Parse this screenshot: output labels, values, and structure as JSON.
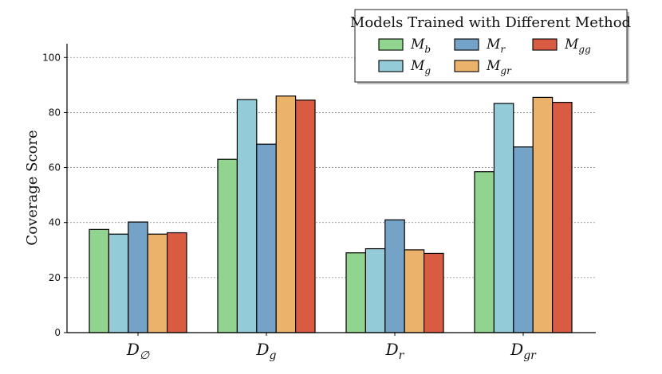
{
  "chart_data": {
    "type": "bar",
    "title": "",
    "xlabel": "",
    "ylabel": "Coverage Score",
    "ylim": [
      0,
      105
    ],
    "yticks": [
      0,
      20,
      40,
      60,
      80,
      100
    ],
    "grid": "y-dashed",
    "legend_title": "Models Trained with Different Method",
    "legend_placement": "top-right",
    "categories": [
      {
        "base": "D",
        "sub": "∅"
      },
      {
        "base": "D",
        "sub": "g"
      },
      {
        "base": "D",
        "sub": "r"
      },
      {
        "base": "D",
        "sub": "gr"
      }
    ],
    "series": [
      {
        "base": "M",
        "sub": "b",
        "color": "#90d48f",
        "values": [
          37.5,
          63.0,
          29.0,
          58.5
        ]
      },
      {
        "base": "M",
        "sub": "g",
        "color": "#93cbd8",
        "values": [
          35.8,
          84.7,
          30.5,
          83.3
        ]
      },
      {
        "base": "M",
        "sub": "r",
        "color": "#75a3c7",
        "values": [
          40.2,
          68.5,
          41.0,
          67.5
        ]
      },
      {
        "base": "M",
        "sub": "gr",
        "color": "#ebb26b",
        "values": [
          35.8,
          86.0,
          30.1,
          85.5
        ]
      },
      {
        "base": "M",
        "sub": "gg",
        "color": "#d95b41",
        "values": [
          36.3,
          84.5,
          28.8,
          83.7
        ]
      }
    ]
  }
}
